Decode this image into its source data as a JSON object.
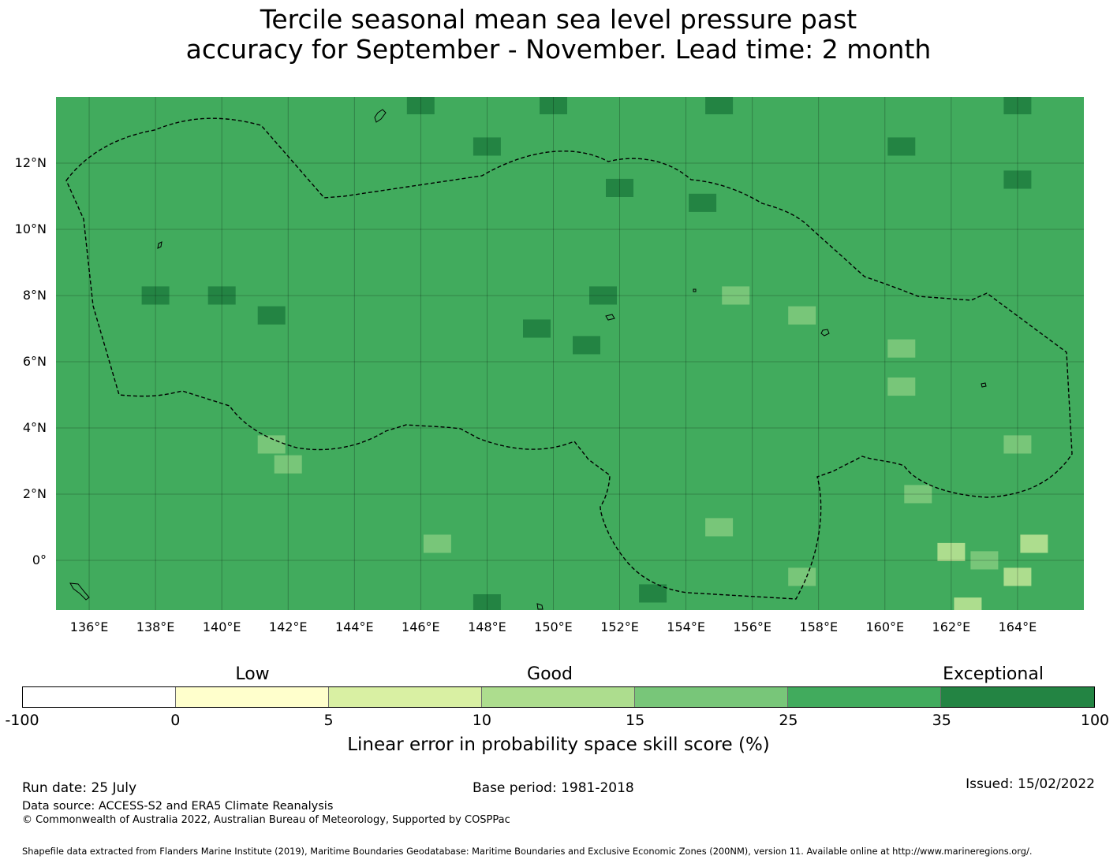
{
  "title": {
    "line1": "Tercile seasonal mean sea level pressure past",
    "line2": "accuracy for September - November. Lead time: 2 month"
  },
  "map": {
    "lat_labels": [
      "12°N",
      "10°N",
      "8°N",
      "6°N",
      "4°N",
      "2°N",
      "0°"
    ],
    "lon_labels": [
      "136°E",
      "138°E",
      "140°E",
      "142°E",
      "144°E",
      "146°E",
      "148°E",
      "150°E",
      "152°E",
      "154°E",
      "156°E",
      "158°E",
      "160°E",
      "162°E",
      "164°E"
    ],
    "extent": {
      "lon_min": 135.0,
      "lon_max": 166.0,
      "lat_min": -1.5,
      "lat_max": 14.0
    },
    "gridlines": true,
    "default_score": 30,
    "cells": [
      {
        "lon": 146.0,
        "lat": 13.75,
        "score": 40
      },
      {
        "lon": 150.0,
        "lat": 13.75,
        "score": 40
      },
      {
        "lon": 155.0,
        "lat": 13.75,
        "score": 40
      },
      {
        "lon": 164.0,
        "lat": 13.75,
        "score": 40
      },
      {
        "lon": 148.0,
        "lat": 12.5,
        "score": 40
      },
      {
        "lon": 160.5,
        "lat": 12.5,
        "score": 40
      },
      {
        "lon": 152.0,
        "lat": 11.25,
        "score": 40
      },
      {
        "lon": 154.5,
        "lat": 10.8,
        "score": 40
      },
      {
        "lon": 164.0,
        "lat": 11.5,
        "score": 40
      },
      {
        "lon": 138.0,
        "lat": 8.0,
        "score": 40
      },
      {
        "lon": 140.0,
        "lat": 8.0,
        "score": 40
      },
      {
        "lon": 141.5,
        "lat": 7.4,
        "score": 40
      },
      {
        "lon": 151.5,
        "lat": 8.0,
        "score": 40
      },
      {
        "lon": 149.5,
        "lat": 7.0,
        "score": 40
      },
      {
        "lon": 151.0,
        "lat": 6.5,
        "score": 40
      },
      {
        "lon": 153.0,
        "lat": -1.0,
        "score": 40
      },
      {
        "lon": 148.0,
        "lat": -1.3,
        "score": 40
      },
      {
        "lon": 155.5,
        "lat": 8.0,
        "score": 20
      },
      {
        "lon": 157.5,
        "lat": 7.4,
        "score": 20
      },
      {
        "lon": 160.5,
        "lat": 6.4,
        "score": 20
      },
      {
        "lon": 160.5,
        "lat": 5.25,
        "score": 20
      },
      {
        "lon": 141.5,
        "lat": 3.5,
        "score": 20
      },
      {
        "lon": 142.0,
        "lat": 2.9,
        "score": 20
      },
      {
        "lon": 146.5,
        "lat": 0.5,
        "score": 20
      },
      {
        "lon": 155.0,
        "lat": 1.0,
        "score": 20
      },
      {
        "lon": 157.5,
        "lat": -0.5,
        "score": 20
      },
      {
        "lon": 161.0,
        "lat": 2.0,
        "score": 20
      },
      {
        "lon": 164.0,
        "lat": 3.5,
        "score": 20
      },
      {
        "lon": 163.0,
        "lat": 0.0,
        "score": 20
      },
      {
        "lon": 164.5,
        "lat": 0.5,
        "score": 12
      },
      {
        "lon": 162.0,
        "lat": 0.25,
        "score": 12
      },
      {
        "lon": 164.0,
        "lat": -0.5,
        "score": 12
      },
      {
        "lon": 162.5,
        "lat": -1.4,
        "score": 12
      }
    ]
  },
  "colorbar": {
    "category_labels": [
      "Low",
      "Good",
      "Exceptional"
    ],
    "tick_labels": [
      "-100",
      "0",
      "5",
      "10",
      "15",
      "25",
      "35",
      "100"
    ],
    "colors": [
      "#ffffff",
      "#ffffcc",
      "#d9f0a3",
      "#addd8e",
      "#78c679",
      "#41ab5d",
      "#238443"
    ],
    "label": "Linear error in probability space skill score (%)"
  },
  "footer": {
    "run_date": "Run date: 25 July",
    "base_period": "Base period: 1981-2018",
    "issued": "Issued: 15/02/2022",
    "data_source": "Data source: ACCESS-S2 and ERA5 Climate Reanalysis",
    "copyright": "© Commonwealth of Australia 2022, Australian Bureau of Meteorology, Supported by COSPPac",
    "shapefile": "Shapefile data extracted from Flanders Marine Institute (2019), Maritime Boundaries Geodatabase: Maritime Boundaries and Exclusive Economic Zones (200NM), version 11. Available online at http://www.marineregions.org/."
  }
}
